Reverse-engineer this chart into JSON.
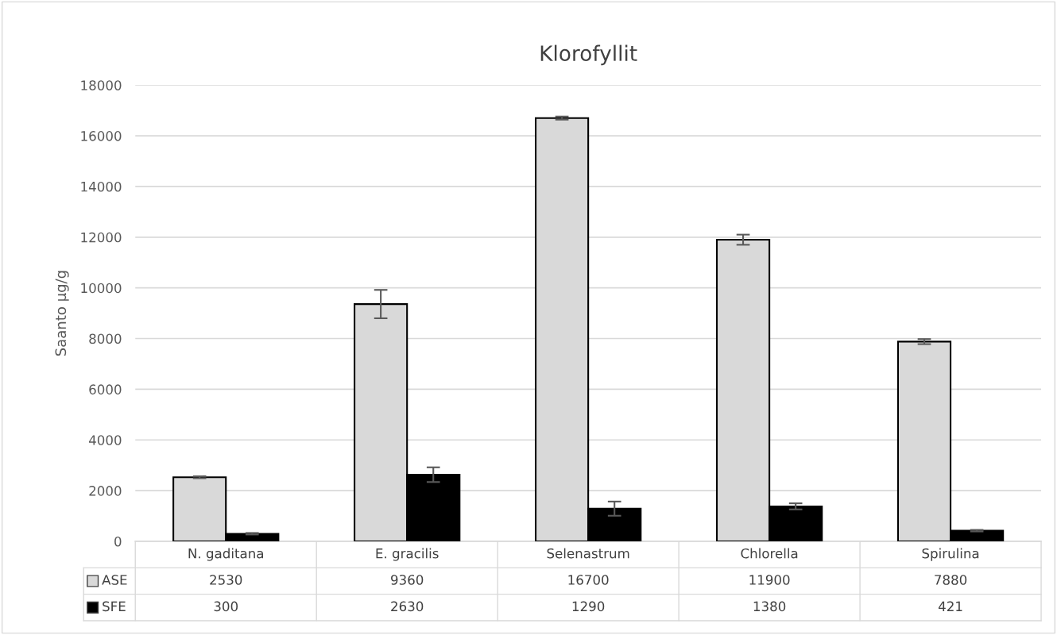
{
  "chart_data": {
    "type": "bar",
    "title": "Klorofyllit",
    "ylabel": "Saanto µg/g",
    "categories": [
      "N. gaditana",
      "E. gracilis",
      "Selenastrum",
      "Chlorella",
      "Spirulina"
    ],
    "series": [
      {
        "name": "ASE",
        "color": "#d9d9d9",
        "values": [
          2530,
          9360,
          16700,
          11900,
          7880
        ],
        "errors": [
          40,
          560,
          60,
          200,
          100
        ]
      },
      {
        "name": "SFE",
        "color": "#000000",
        "values": [
          300,
          2630,
          1290,
          1380,
          421
        ],
        "errors": [
          30,
          290,
          280,
          120,
          30
        ]
      }
    ],
    "ylim": [
      0,
      18000
    ],
    "yticks": [
      0,
      2000,
      4000,
      6000,
      8000,
      10000,
      12000,
      14000,
      16000,
      18000
    ],
    "grid": "y",
    "legend": "bottom",
    "data_labels": true
  }
}
